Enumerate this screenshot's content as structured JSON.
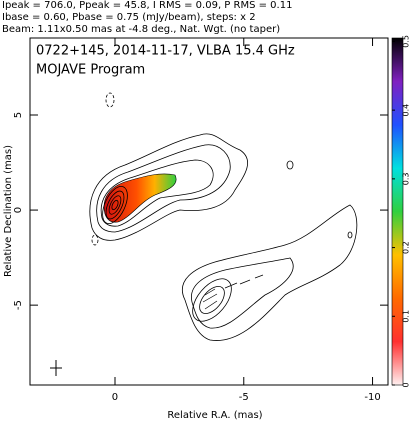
{
  "chart_data": {
    "type": "contour",
    "header": [
      "Ipeak = 706.0, Ppeak = 45.8, I RMS = 0.09, P RMS = 0.11",
      "Ibase = 0.60, Pbase = 0.75 (mJy/beam), steps: x 2",
      "Beam: 1.11x0.50 mas at -4.8 deg., Nat. Wgt. (no taper)"
    ],
    "title": "0722+145, 2014-11-17, VLBA 15.4 GHz",
    "subtitle": "MOJAVE Program",
    "xlabel": "Relative R.A. (mas)",
    "ylabel": "Relative Declination (mas)",
    "xlim": [
      3.3,
      -10.6
    ],
    "xticks": [
      0,
      -5,
      -10
    ],
    "ylim": [
      -9.2,
      9.05
    ],
    "yticks": [
      -5,
      0,
      5
    ],
    "clim": [
      0,
      0.505
    ],
    "cticks": [
      0,
      0.1,
      0.2,
      0.3,
      0.4,
      0.5
    ],
    "colorbar_colors": [
      "#fff0f0",
      "#ff3030",
      "#ff6a00",
      "#ffc000",
      "#30d040",
      "#00e0e0",
      "#2050ff",
      "#8020c0",
      "#000000"
    ]
  }
}
